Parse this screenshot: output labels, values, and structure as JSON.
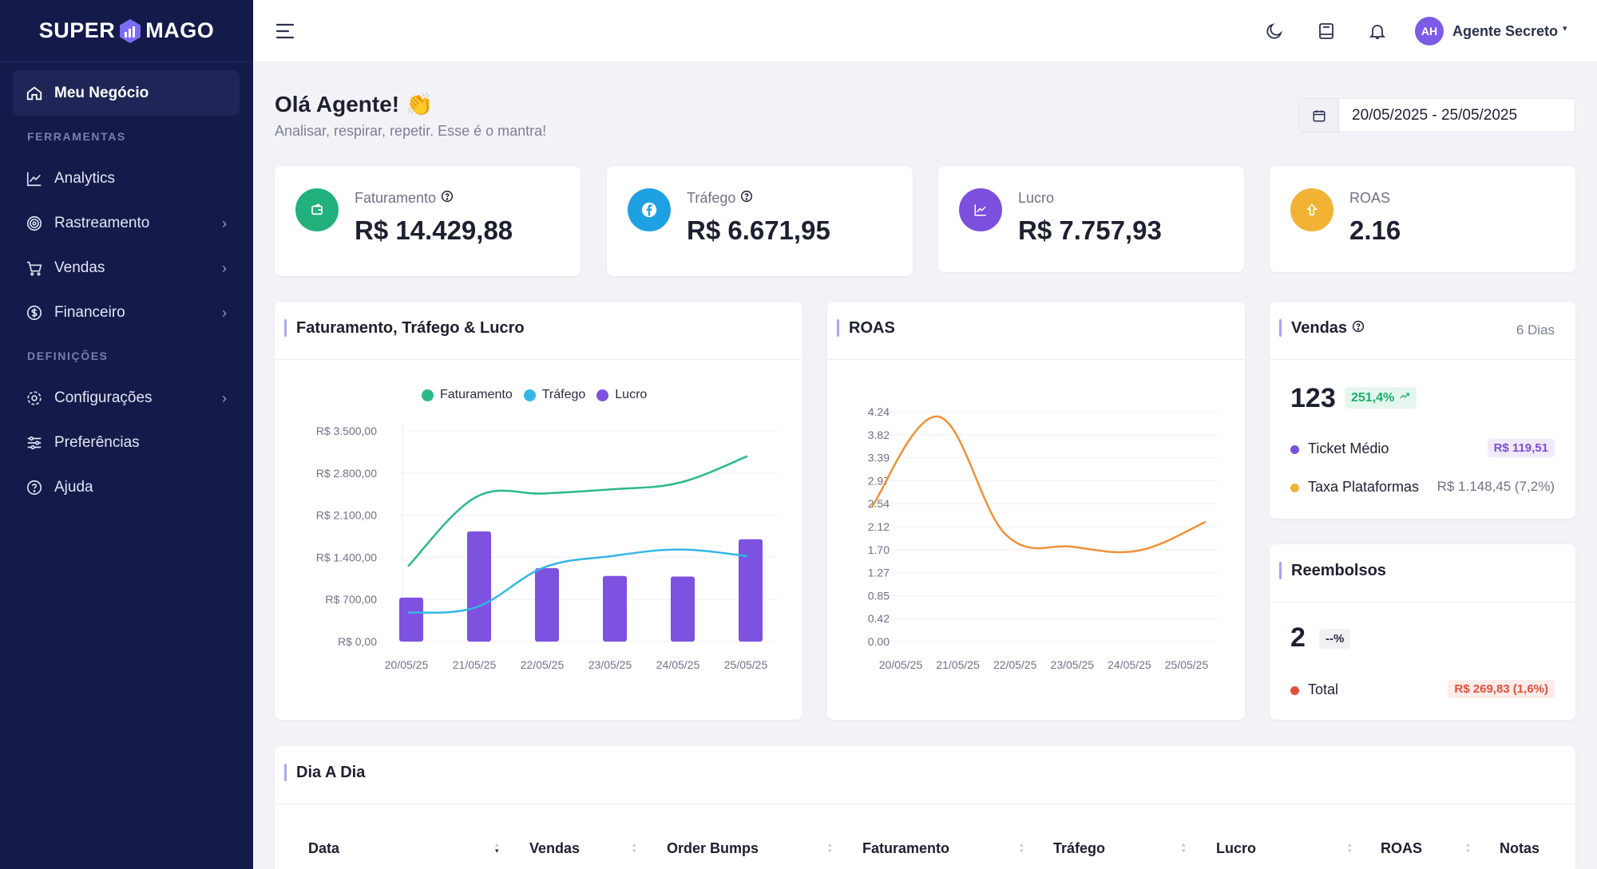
{
  "brand": {
    "left": "SUPER",
    "right": "MAGO"
  },
  "sidebar": {
    "active": {
      "label": "Meu Negócio",
      "icon": "home-icon"
    },
    "section_tools": "FERRAMENTAS",
    "section_defs": "DEFINIÇÕES",
    "items": [
      {
        "label": "Analytics",
        "icon": "chart-line-icon",
        "has_chevron": false
      },
      {
        "label": "Rastreamento",
        "icon": "fingerprint-icon",
        "has_chevron": true
      },
      {
        "label": "Vendas",
        "icon": "cart-icon",
        "has_chevron": true
      },
      {
        "label": "Financeiro",
        "icon": "dollar-circle-icon",
        "has_chevron": true
      },
      {
        "label": "Configurações",
        "icon": "gear-icon",
        "has_chevron": true
      },
      {
        "label": "Preferências",
        "icon": "sliders-icon",
        "has_chevron": false
      },
      {
        "label": "Ajuda",
        "icon": "help-circle-icon",
        "has_chevron": false
      }
    ]
  },
  "topbar": {
    "user_initials": "AH",
    "user_name": "Agente Secreto"
  },
  "greeting": {
    "title": "Olá Agente! 👏",
    "subtitle": "Analisar, respirar, repetir. Esse é o mantra!"
  },
  "date_range": "20/05/2025 - 25/05/2025",
  "stats": [
    {
      "label": "Faturamento",
      "value": "R$ 14.429,88",
      "color": "#22b07d",
      "icon": "wallet-icon",
      "help": true
    },
    {
      "label": "Tráfego",
      "value": "R$ 6.671,95",
      "color": "#1da1e2",
      "icon": "facebook-icon",
      "help": true
    },
    {
      "label": "Lucro",
      "value": "R$ 7.757,93",
      "color": "#7c4fdc",
      "icon": "trend-icon",
      "help": false
    },
    {
      "label": "ROAS",
      "value": "2.16",
      "color": "#f2b234",
      "icon": "arrow-up-icon",
      "help": false
    }
  ],
  "chart_main": {
    "title": "Faturamento, Tráfego & Lucro",
    "legend": [
      "Faturamento",
      "Tráfego",
      "Lucro"
    ],
    "colors": {
      "faturamento": "#2bb98a",
      "trafego": "#34b6e6",
      "lucro": "#7d52e0"
    },
    "y_ticks": [
      "R$ 3.500,00",
      "R$ 2.800,00",
      "R$ 2.100,00",
      "R$ 1.400,00",
      "R$ 700,00",
      "R$ 0,00"
    ]
  },
  "chart_data": [
    {
      "type": "bar",
      "title": "Faturamento, Tráfego & Lucro",
      "categories": [
        "20/05/25",
        "21/05/25",
        "22/05/25",
        "23/05/25",
        "24/05/25",
        "25/05/25"
      ],
      "ylim": [
        0,
        3500
      ],
      "series": [
        {
          "name": "Faturamento",
          "type": "line",
          "values": [
            1250,
            2400,
            2460,
            2530,
            2640,
            3080
          ]
        },
        {
          "name": "Tráfego",
          "type": "line",
          "values": [
            480,
            570,
            1230,
            1420,
            1530,
            1420
          ]
        },
        {
          "name": "Lucro",
          "type": "bar",
          "values": [
            730,
            1830,
            1220,
            1090,
            1080,
            1700
          ]
        }
      ]
    },
    {
      "type": "line",
      "title": "ROAS",
      "categories": [
        "20/05/25",
        "21/05/25",
        "22/05/25",
        "23/05/25",
        "24/05/25",
        "25/05/25"
      ],
      "ylim": [
        0,
        4.24
      ],
      "y_ticks": [
        "4.24",
        "3.82",
        "3.39",
        "2.97",
        "2.54",
        "2.12",
        "1.70",
        "1.27",
        "0.85",
        "0.42",
        "0.00"
      ],
      "series": [
        {
          "name": "ROAS",
          "color": "#f0913a",
          "values": [
            2.49,
            4.15,
            1.98,
            1.75,
            1.68,
            2.21
          ]
        }
      ]
    }
  ],
  "vendas": {
    "title": "Vendas",
    "period": "6 Dias",
    "count": "123",
    "growth": "251,4%",
    "ticket_label": "Ticket Médio",
    "ticket_value": "R$ 119,51",
    "taxa_label": "Taxa Plataformas",
    "taxa_value": "R$ 1.148,45 (7,2%)"
  },
  "reembolsos": {
    "title": "Reembolsos",
    "count": "2",
    "pct": "--%",
    "total_label": "Total",
    "total_value": "R$ 269,83 (1,6%)"
  },
  "dia_a_dia": {
    "title": "Dia A Dia",
    "columns": [
      "Data",
      "Vendas",
      "Order Bumps",
      "Faturamento",
      "Tráfego",
      "Lucro",
      "ROAS",
      "Notas"
    ]
  }
}
